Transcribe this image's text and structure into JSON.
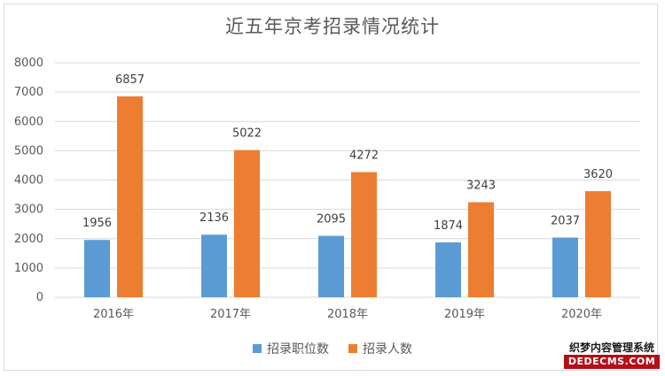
{
  "chart_data": {
    "type": "bar",
    "title": "近五年京考招录情况统计",
    "categories": [
      "2016年",
      "2017年",
      "2018年",
      "2019年",
      "2020年"
    ],
    "series": [
      {
        "name": "招录职位数",
        "color": "#5b9bd5",
        "values": [
          1956,
          2136,
          2095,
          1874,
          2037
        ]
      },
      {
        "name": "招录人数",
        "color": "#ed7d31",
        "values": [
          6857,
          5022,
          4272,
          3243,
          3620
        ]
      }
    ],
    "ylim": [
      0,
      8000
    ],
    "yticks": [
      0,
      1000,
      2000,
      3000,
      4000,
      5000,
      6000,
      7000,
      8000
    ],
    "grid": true,
    "legend": "bottom"
  },
  "watermark": {
    "line1": "织梦内容管理系统",
    "line2": "DEDECMS.COM"
  }
}
